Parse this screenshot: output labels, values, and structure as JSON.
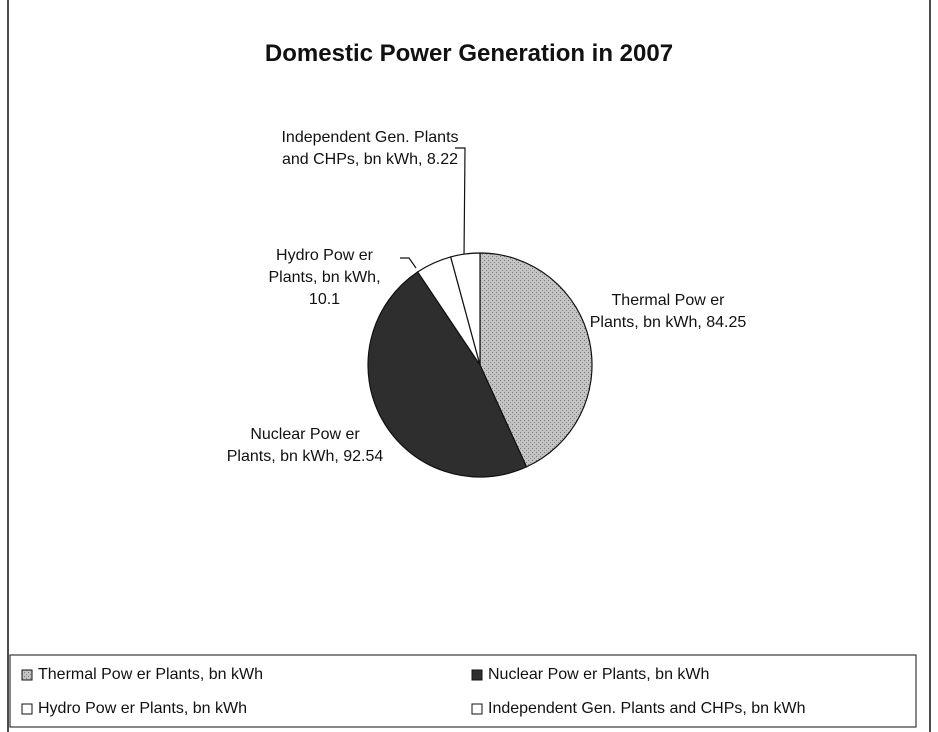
{
  "chart_data": {
    "type": "pie",
    "title": "Domestic Power Generation in 2007",
    "categories": [
      "Thermal Pow er Plants, bn kWh",
      "Nuclear Pow er Plants, bn kWh",
      "Hydro Pow er Plants, bn kWh",
      "Independent Gen. Plants and CHPs, bn kWh"
    ],
    "values": [
      84.25,
      92.54,
      10.1,
      8.22
    ],
    "value_labels": [
      "Thermal Pow er Plants, bn kWh, 84.25",
      "Nuclear Pow er Plants, bn kWh, 92.54",
      "Hydro Pow er Plants, bn kWh, 10.1",
      "Independent Gen. Plants and CHPs, bn kWh, 8.22"
    ],
    "colors": [
      "#b4b4b4",
      "#2e2e2e",
      "#ffffff",
      "#ffffff"
    ],
    "legend": "bottom"
  }
}
